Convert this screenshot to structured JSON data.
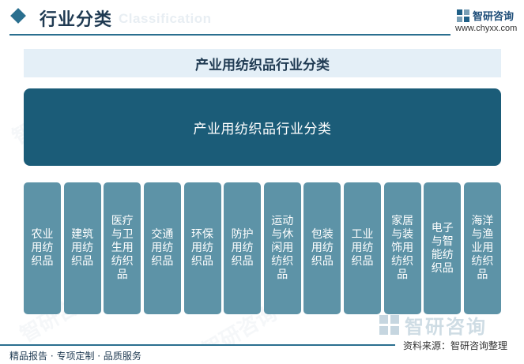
{
  "header": {
    "title": "行业分类",
    "title_en": "Classification",
    "logo_text": "智研咨询",
    "site": "www.chyxx.com"
  },
  "banner": {
    "title": "产业用纺织品行业分类"
  },
  "main": {
    "title": "产业用纺织品行业分类"
  },
  "categories": [
    "农业用纺织品",
    "建筑用纺织品",
    "医疗与卫生用纺织品",
    "交通用纺织品",
    "环保用纺织品",
    "防护用纺织品",
    "运动与休闲用纺织品",
    "包装用纺织品",
    "工业用纺织品",
    "家居与装饰用纺织品",
    "电子与智能纺织品",
    "海洋与渔业用纺织品"
  ],
  "watermark": {
    "brand": "智研咨询"
  },
  "footer": {
    "left": "精品报告 · 专项定制 · 品质服务",
    "source": "资料来源：智研咨询整理"
  }
}
